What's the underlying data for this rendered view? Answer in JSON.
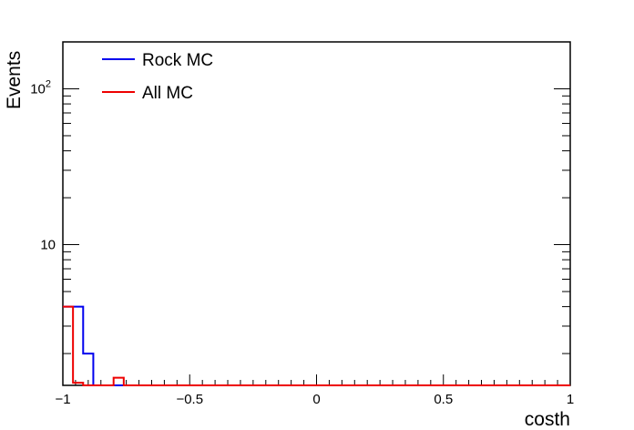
{
  "chart_data": {
    "type": "step",
    "xlabel": "costh",
    "ylabel": "Events",
    "xlim": [
      -1,
      1
    ],
    "ylim": [
      1.25,
      200
    ],
    "log_y": true,
    "bins": 50,
    "x_ticks": [
      {
        "value": -1,
        "label": "−1"
      },
      {
        "value": -0.5,
        "label": "−0.5"
      },
      {
        "value": 0,
        "label": "0"
      },
      {
        "value": 0.5,
        "label": "0.5"
      },
      {
        "value": 1,
        "label": "1"
      }
    ],
    "y_ticks": [
      {
        "value": 10,
        "label": "10"
      },
      {
        "value": 100,
        "label": "10",
        "sup": "2"
      }
    ],
    "legend_position": "top-left",
    "series": [
      {
        "name": "Rock MC",
        "color": "#0000ee",
        "values": [
          4,
          4,
          2,
          1,
          1,
          1,
          1,
          1,
          1,
          1,
          1,
          1,
          1,
          1,
          1,
          1,
          1,
          1,
          1,
          1,
          1,
          1,
          1,
          1,
          1,
          1,
          1,
          1,
          1,
          1,
          1,
          1,
          1,
          1,
          1,
          1,
          1,
          1,
          1,
          1,
          1,
          1,
          1,
          1,
          1,
          1,
          1,
          1,
          1,
          1
        ]
      },
      {
        "name": "All MC",
        "color": "#ee0000",
        "values": [
          4,
          1.3,
          1.2,
          1.2,
          1.2,
          1.4,
          1,
          1,
          1,
          1,
          1,
          1,
          1,
          1,
          1,
          1,
          1,
          1,
          1,
          1,
          1,
          1,
          1,
          1,
          1,
          1,
          1,
          1,
          1,
          1,
          1,
          1,
          1,
          1,
          1,
          1,
          1,
          1,
          1,
          1,
          1,
          1,
          1,
          1,
          1,
          1,
          1,
          1,
          1,
          1
        ]
      }
    ]
  }
}
